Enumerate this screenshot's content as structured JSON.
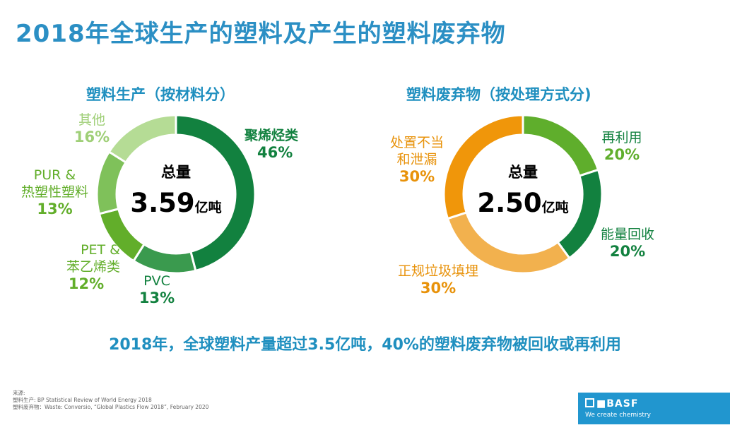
{
  "title": "2018年全球生产的塑料及产生的塑料废弃物",
  "chart_data": [
    {
      "type": "pie",
      "title": "塑料生产（按材料分）",
      "center_label": "总量",
      "center_value": "3.59",
      "center_unit": "亿吨",
      "slices": [
        {
          "label": "聚烯烃类",
          "value": 46,
          "value_label": "46%",
          "color": "#12813f"
        },
        {
          "label": "PVC",
          "value": 13,
          "value_label": "13%",
          "color": "#3a9a4e"
        },
        {
          "label": "PET &\n苯乙烯类",
          "value": 12,
          "value_label": "12%",
          "color": "#62ae2a"
        },
        {
          "label": "PUR &\n热塑性塑料",
          "value": 13,
          "value_label": "13%",
          "color": "#7fc15a"
        },
        {
          "label": "其他",
          "value": 16,
          "value_label": "16%",
          "color": "#b5dc95"
        }
      ]
    },
    {
      "type": "pie",
      "title": "塑料废弃物（按处理方式分)",
      "center_label": "总量",
      "center_value": "2.50",
      "center_unit": "亿吨",
      "slices": [
        {
          "label": "再利用",
          "value": 20,
          "value_label": "20%",
          "color": "#5fae2c"
        },
        {
          "label": "能量回收",
          "value": 20,
          "value_label": "20%",
          "color": "#12813f"
        },
        {
          "label": "正规垃圾填埋",
          "value": 30,
          "value_label": "30%",
          "color": "#f2b14e"
        },
        {
          "label": "处置不当\n和泄漏",
          "value": 30,
          "value_label": "30%",
          "color": "#f0960a"
        }
      ]
    }
  ],
  "summary": "2018年，全球塑料产量超过3.5亿吨，40%的塑料废弃物被回收或再利用",
  "source": {
    "heading": "来源:",
    "line1": "塑料生产: BP Statistical Review of World Energy 2018",
    "line2": "塑料废弃物：Waste: Conversio, “Global Plastics Flow 2018”, February 2020"
  },
  "brand": {
    "name": "BASF",
    "tagline": "We create chemistry"
  }
}
